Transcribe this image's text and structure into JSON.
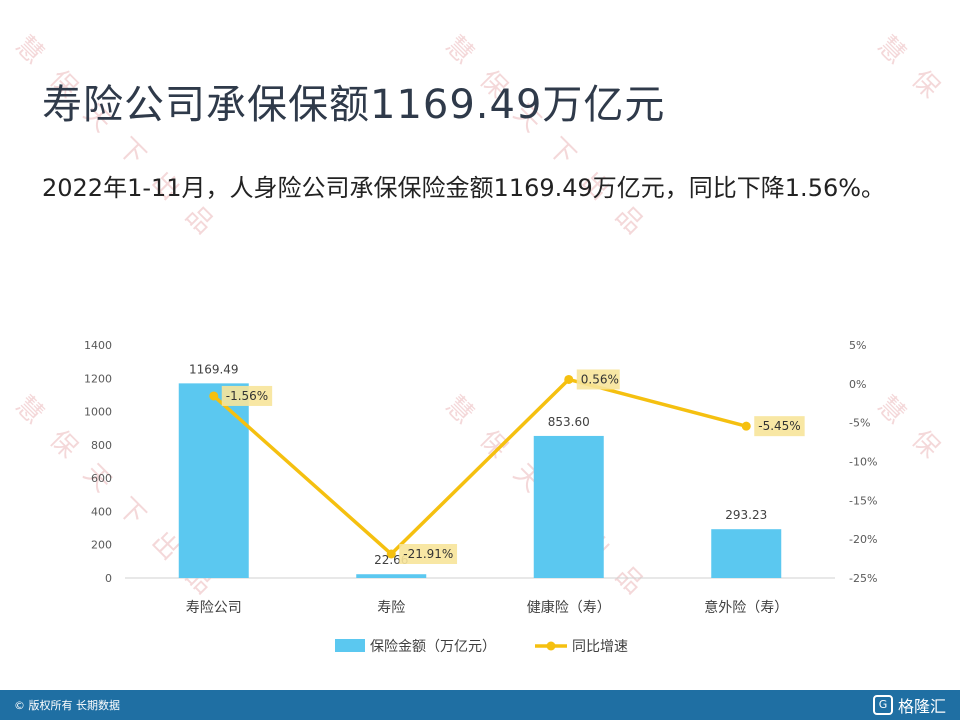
{
  "header": {
    "title": "寿险公司承保保额1169.49万亿元",
    "subtitle": "2022年1-11月，人身险公司承保保险金额1169.49万亿元，同比下降1.56%。"
  },
  "watermark": {
    "chars": [
      "慧",
      "保",
      "天",
      "下",
      "出",
      "品"
    ],
    "color": "#e7a9ad"
  },
  "chart_data": {
    "type": "bar",
    "categories": [
      "寿险公司",
      "寿险",
      "健康险（寿）",
      "意外险（寿）"
    ],
    "series": [
      {
        "name": "保险金额（万亿元）",
        "type": "bar",
        "axis": "left",
        "color": "#5bc8f0",
        "values": [
          1169.49,
          22.66,
          853.6,
          293.23
        ],
        "labels": [
          "1169.49",
          "22.66",
          "853.60",
          "293.23"
        ]
      },
      {
        "name": "同比增速",
        "type": "line",
        "axis": "right",
        "color": "#f5c010",
        "values": [
          -1.56,
          -21.91,
          0.56,
          -5.45
        ],
        "labels": [
          "-1.56%",
          "-21.91%",
          "0.56%",
          "-5.45%"
        ]
      }
    ],
    "y_left": {
      "min": 0,
      "max": 1400,
      "ticks": [
        "0",
        "200",
        "400",
        "600",
        "800",
        "1000",
        "1200",
        "1400"
      ]
    },
    "y_right": {
      "min": -25,
      "max": 5,
      "ticks": [
        "-25%",
        "-20%",
        "-15%",
        "-10%",
        "-5%",
        "0%",
        "5%"
      ]
    },
    "legend": {
      "placement": "bottom"
    },
    "grid": false,
    "colors": {
      "bar": "#5bc8f0",
      "line": "#f5c010",
      "label_bg": "#f7e49a"
    }
  },
  "footer": {
    "copyright": "© 版权所有 长期数据",
    "logo_text": "格隆汇",
    "logo_mark": "G",
    "color": "#1f6fa3"
  }
}
